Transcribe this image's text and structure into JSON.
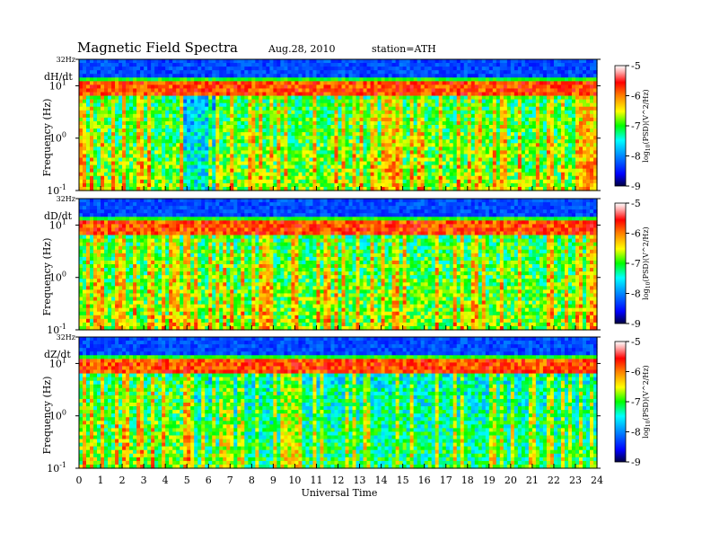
{
  "header": {
    "title": "Magnetic  Field  Spectra",
    "date": "Aug.28, 2010",
    "station": "station=ATH"
  },
  "chart_data": {
    "type": "heatmap",
    "xlabel": "Universal Time",
    "x_ticks": [
      "0",
      "1",
      "2",
      "3",
      "4",
      "5",
      "6",
      "7",
      "8",
      "9",
      "10",
      "11",
      "12",
      "13",
      "14",
      "15",
      "16",
      "17",
      "18",
      "19",
      "20",
      "21",
      "22",
      "23",
      "24"
    ],
    "xlim": [
      0,
      24
    ],
    "y_scale": "log",
    "ylim_hz": [
      0.1,
      32
    ],
    "ylabel": "Frequency  (Hz)",
    "y_ticks": [
      {
        "label": "32Hz",
        "value": 32
      },
      {
        "label": "10",
        "exp": "1",
        "value": 10
      },
      {
        "label": "10",
        "exp": "0",
        "value": 1
      },
      {
        "label": "10",
        "exp": "-1",
        "value": 0.1
      }
    ],
    "colorbar": {
      "label": "log10(PSD)(V^2/Hz)",
      "label_parts": {
        "pre": "log",
        "sub": "10",
        "post": "(PSD)(V^2/Hz)"
      },
      "ticks": [
        "-5",
        "-6",
        "-7",
        "-8",
        "-9"
      ],
      "range": [
        -9,
        -5
      ],
      "colors": [
        "#000040",
        "#0000ff",
        "#0088ff",
        "#00ffff",
        "#00ff00",
        "#ffff00",
        "#ff8000",
        "#ff0000",
        "#ffb0b0",
        "#ffffff"
      ]
    },
    "panels": [
      {
        "label": "dH/dt"
      },
      {
        "label": "dD/dt"
      },
      {
        "label": "dZ/dt"
      }
    ]
  }
}
